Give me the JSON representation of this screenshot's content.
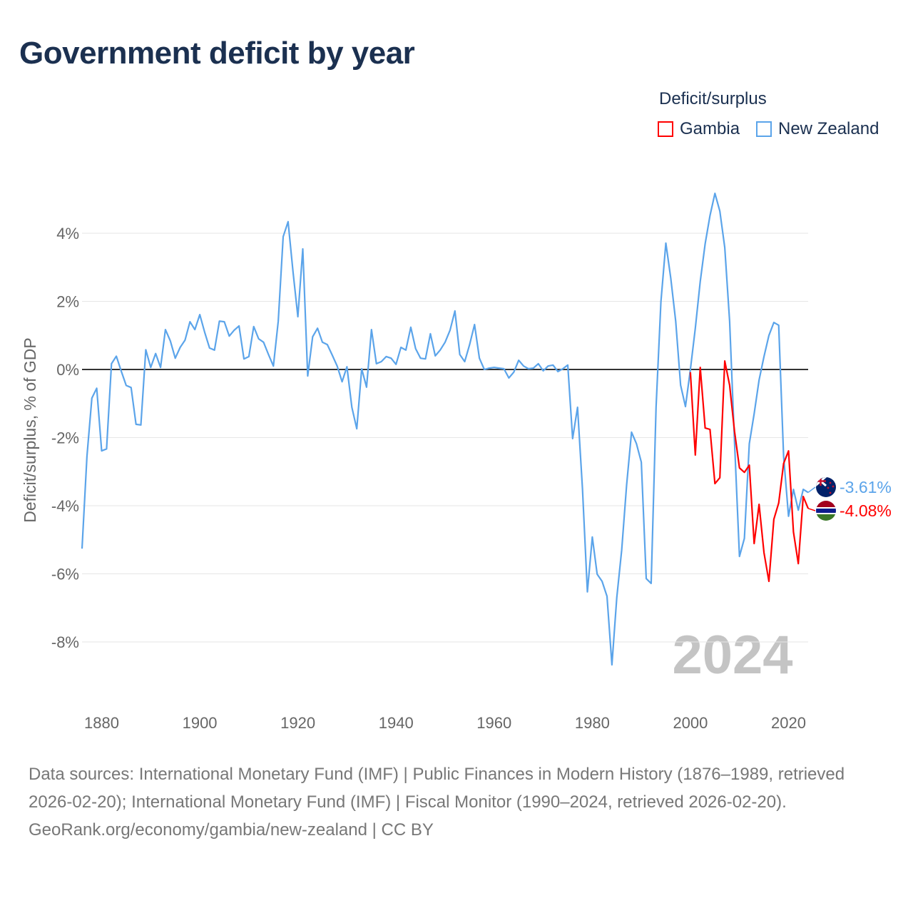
{
  "title": "Government deficit by year",
  "footer": {
    "sources": "Data sources: International Monetary Fund (IMF) | Public Finances in Modern History (1876–1989, retrieved 2026-02-20); International Monetary Fund (IMF) | Fiscal Monitor (1990–2024, retrieved 2026-02-20).",
    "credit": "GeoRank.org/economy/gambia/new-zealand | CC BY"
  },
  "chart_data": {
    "type": "line",
    "title": "Government deficit by year",
    "xlabel": "",
    "ylabel": "Deficit/surplus, % of GDP",
    "xlim": [
      1876,
      2024
    ],
    "ylim": [
      -10,
      5.5
    ],
    "yticks": [
      4,
      2,
      0,
      -2,
      -4,
      -6,
      -8
    ],
    "ytick_labels": [
      "4%",
      "2%",
      "0%",
      "-2%",
      "-4%",
      "-6%",
      "-8%"
    ],
    "xticks": [
      1880,
      1900,
      1920,
      1940,
      1960,
      1980,
      2000,
      2020
    ],
    "xtick_labels": [
      "1880",
      "1900",
      "1920",
      "1940",
      "1960",
      "1980",
      "2000",
      "2020"
    ],
    "grid": true,
    "legend_title": "Deficit/surplus",
    "legend_position": "top-right",
    "year_watermark": "2024",
    "series": [
      {
        "name": "Gambia",
        "color": "#ff0000",
        "end_label": "-4.08%",
        "start_year": 2000,
        "values": [
          -0.08,
          -2.51,
          0.06,
          -1.72,
          -1.76,
          -3.35,
          -3.18,
          0.25,
          -0.46,
          -1.82,
          -2.89,
          -3.02,
          -2.81,
          -5.11,
          -3.96,
          -5.38,
          -6.22,
          -4.4,
          -3.92,
          -2.76,
          -2.39,
          -4.77,
          -5.7,
          -3.73,
          -4.08
        ]
      },
      {
        "name": "New Zealand",
        "color": "#5ba4ea",
        "end_label": "-3.61%",
        "start_year": 1876,
        "values": [
          -5.26,
          -2.55,
          -0.84,
          -0.55,
          -2.39,
          -2.33,
          0.17,
          0.39,
          -0.05,
          -0.47,
          -0.53,
          -1.61,
          -1.63,
          0.58,
          0.06,
          0.47,
          0.06,
          1.17,
          0.84,
          0.33,
          0.65,
          0.86,
          1.4,
          1.17,
          1.61,
          1.09,
          0.63,
          0.57,
          1.42,
          1.4,
          0.98,
          1.15,
          1.28,
          0.31,
          0.38,
          1.26,
          0.9,
          0.8,
          0.44,
          0.1,
          1.42,
          3.9,
          4.34,
          2.87,
          1.55,
          3.54,
          -0.19,
          0.96,
          1.21,
          0.8,
          0.73,
          0.42,
          0.1,
          -0.36,
          0.08,
          -1.11,
          -1.74,
          0.02,
          -0.52,
          1.17,
          0.17,
          0.23,
          0.38,
          0.33,
          0.15,
          0.65,
          0.57,
          1.24,
          0.61,
          0.33,
          0.31,
          1.05,
          0.4,
          0.57,
          0.8,
          1.15,
          1.72,
          0.44,
          0.23,
          0.73,
          1.32,
          0.33,
          0.0,
          0.04,
          0.06,
          0.04,
          0.02,
          -0.25,
          -0.08,
          0.27,
          0.1,
          0.02,
          0.04,
          0.17,
          -0.04,
          0.1,
          0.13,
          -0.06,
          0.02,
          0.13,
          -2.03,
          -1.11,
          -3.5,
          -6.53,
          -4.92,
          -6.01,
          -6.22,
          -6.66,
          -8.67,
          -6.7,
          -5.3,
          -3.39,
          -1.84,
          -2.18,
          -2.72,
          -6.14,
          -6.28,
          -1.1,
          1.99,
          3.71,
          2.68,
          1.42,
          -0.46,
          -1.09,
          0.0,
          1.21,
          2.58,
          3.69,
          4.52,
          5.17,
          4.65,
          3.58,
          1.42,
          -2.14,
          -5.49,
          -4.96,
          -2.18,
          -1.3,
          -0.31,
          0.38,
          1.0,
          1.38,
          1.3,
          -2.55,
          -4.31,
          -3.52,
          -4.13,
          -3.52,
          -3.61
        ]
      }
    ]
  }
}
